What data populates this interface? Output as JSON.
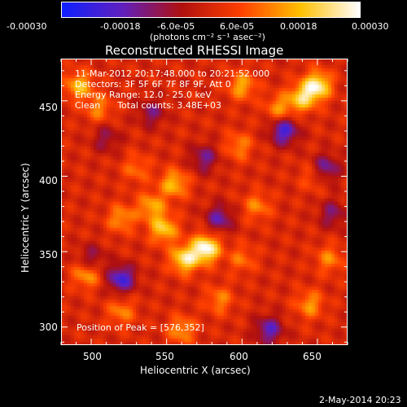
{
  "chart_data": {
    "type": "heatmap",
    "title": "Reconstructed RHESSI Image",
    "xlabel": "Heliocentric X (arcsec)",
    "ylabel": "Heliocentric Y (arcsec)",
    "xlim": [
      480,
      670
    ],
    "ylim": [
      288,
      478
    ],
    "x_ticks": [
      "500",
      "550",
      "600",
      "650"
    ],
    "x_tick_values": [
      500,
      550,
      600,
      650
    ],
    "y_ticks": [
      "300",
      "350",
      "400",
      "450"
    ],
    "y_tick_values": [
      300,
      350,
      400,
      450
    ],
    "colorbar": {
      "tick_labels": [
        "-0.00030",
        "-0.00018",
        "-6.0e-05",
        "6.0e-05",
        "0.00018",
        "0.00030"
      ],
      "tick_values": [
        -0.0003,
        -0.00018,
        -6e-05,
        6e-05,
        0.00018,
        0.0003
      ],
      "range": [
        -0.0003,
        0.0003
      ],
      "unit_label": "(photons cm⁻² s⁻¹ asec⁻²)",
      "colors": [
        "#1020ff",
        "#6020c0",
        "#b01010",
        "#ff4000",
        "#ffc000",
        "#ffffff"
      ]
    },
    "annotations": [
      "11-Mar-2012 20:17:48.000 to 20:21:52.000",
      "Detectors: 3F 5F 6F 7F 8F 9F, Att 0",
      "Energy Range: 12.0 - 25.0 keV",
      "Clean      Total counts: 3.48E+03",
      "Position of Peak = [576,352]"
    ],
    "peak": {
      "x": 576,
      "y": 352
    },
    "sources": [
      {
        "x": 576,
        "y": 352,
        "value": 0.0003
      },
      {
        "x": 562,
        "y": 345,
        "value": 0.00024
      },
      {
        "x": 548,
        "y": 365,
        "value": 0.0002
      },
      {
        "x": 555,
        "y": 395,
        "value": 0.00018
      },
      {
        "x": 540,
        "y": 380,
        "value": 0.00016
      },
      {
        "x": 520,
        "y": 372,
        "value": 0.00014
      },
      {
        "x": 650,
        "y": 460,
        "value": 0.00026
      },
      {
        "x": 640,
        "y": 452,
        "value": 0.0002
      },
      {
        "x": 600,
        "y": 460,
        "value": 0.00016
      },
      {
        "x": 625,
        "y": 445,
        "value": 0.00014
      },
      {
        "x": 598,
        "y": 420,
        "value": 0.00012
      },
      {
        "x": 610,
        "y": 380,
        "value": 0.00012
      },
      {
        "x": 492,
        "y": 460,
        "value": 0.00018
      },
      {
        "x": 505,
        "y": 445,
        "value": 0.00012
      },
      {
        "x": 497,
        "y": 335,
        "value": 0.00016
      },
      {
        "x": 520,
        "y": 310,
        "value": 0.00012
      },
      {
        "x": 560,
        "y": 298,
        "value": 0.00014
      },
      {
        "x": 585,
        "y": 318,
        "value": 0.00012
      },
      {
        "x": 600,
        "y": 345,
        "value": 0.0001
      },
      {
        "x": 645,
        "y": 315,
        "value": 0.00014
      },
      {
        "x": 658,
        "y": 345,
        "value": 0.00012
      },
      {
        "x": 648,
        "y": 400,
        "value": 0.0001
      },
      {
        "x": 530,
        "y": 405,
        "value": 0.0001
      },
      {
        "x": 628,
        "y": 430,
        "value": -0.00022
      },
      {
        "x": 655,
        "y": 405,
        "value": -0.00018
      },
      {
        "x": 520,
        "y": 332,
        "value": -0.00022
      },
      {
        "x": 500,
        "y": 345,
        "value": -0.00012
      },
      {
        "x": 585,
        "y": 372,
        "value": -0.00016
      },
      {
        "x": 618,
        "y": 298,
        "value": -0.00018
      },
      {
        "x": 575,
        "y": 412,
        "value": -0.00014
      },
      {
        "x": 540,
        "y": 442,
        "value": -0.00012
      },
      {
        "x": 510,
        "y": 425,
        "value": -0.0001
      },
      {
        "x": 660,
        "y": 375,
        "value": -0.00012
      }
    ]
  },
  "footer": {
    "date": "2-May-2014 20:23"
  }
}
